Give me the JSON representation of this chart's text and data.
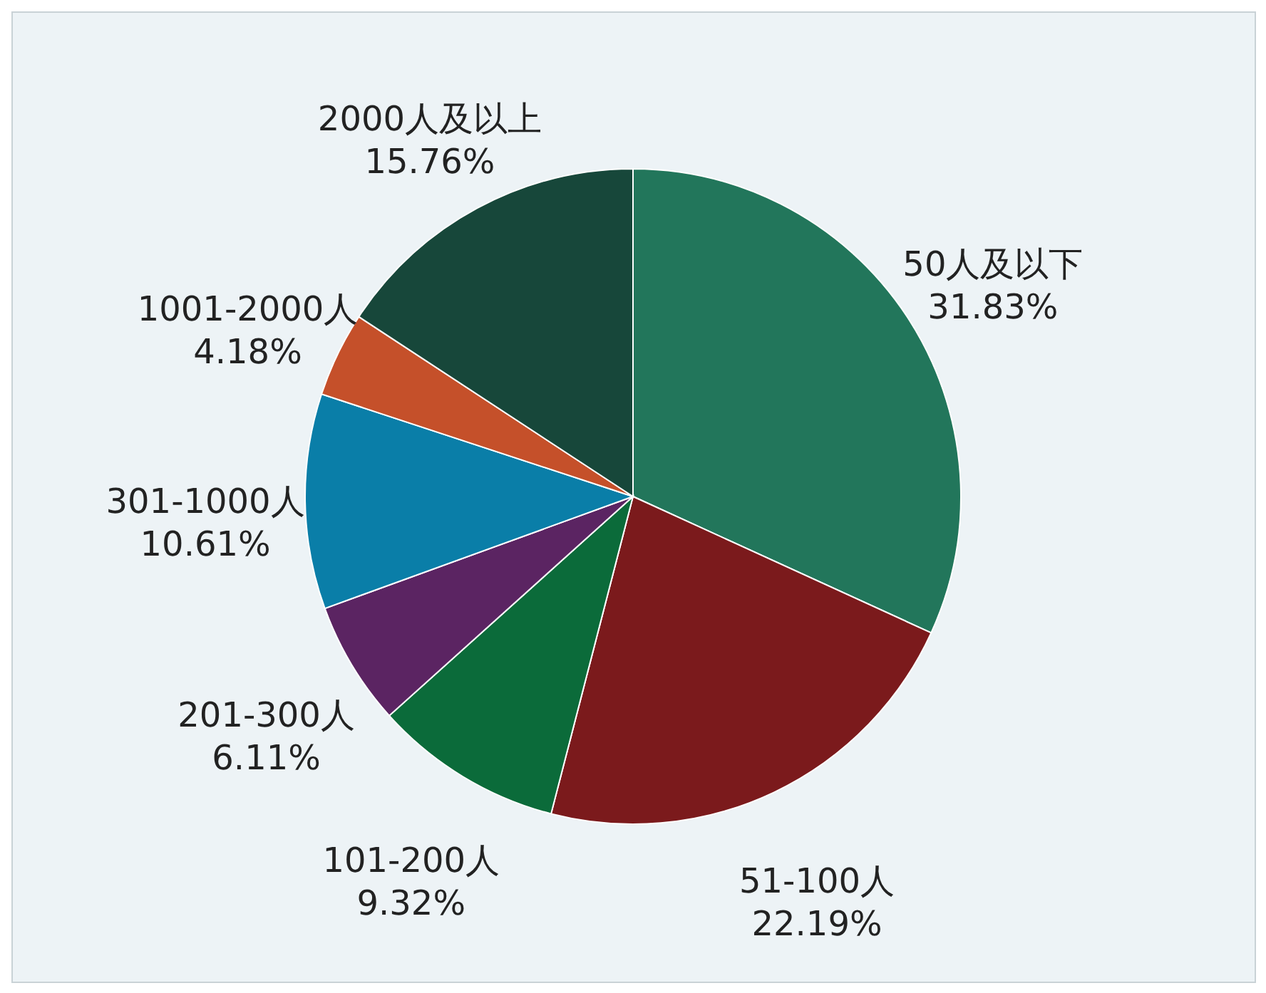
{
  "chart_data": {
    "type": "pie",
    "categories": [
      "50人及以下",
      "51-100人",
      "101-200人",
      "201-300人",
      "301-1000人",
      "1001-2000人",
      "2000人及以上"
    ],
    "values": [
      31.83,
      22.19,
      9.32,
      6.11,
      10.61,
      4.18,
      15.76
    ],
    "value_labels": [
      "31.83%",
      "22.19%",
      "9.32%",
      "6.11%",
      "10.61%",
      "4.18%",
      "15.76%"
    ],
    "colors": [
      "#22765b",
      "#7b1a1c",
      "#0b6b3a",
      "#5b2462",
      "#0a7ea8",
      "#c5502a",
      "#17473a"
    ]
  }
}
